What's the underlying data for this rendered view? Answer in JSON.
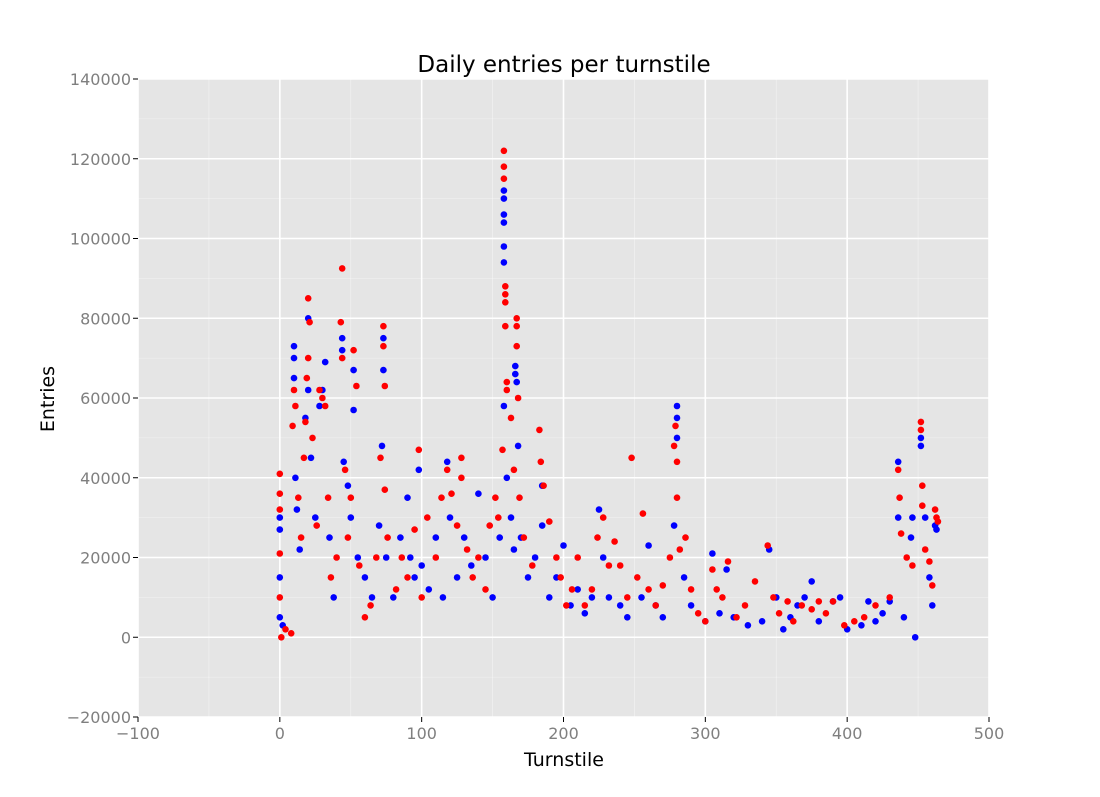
{
  "chart_data": {
    "type": "scatter",
    "title": "Daily entries per turnstile",
    "xlabel": "Turnstile",
    "ylabel": "Entries",
    "xlim": [
      -100,
      500
    ],
    "ylim": [
      -20000,
      140000
    ],
    "x_ticks": [
      -100,
      0,
      100,
      200,
      300,
      400,
      500
    ],
    "y_ticks": [
      -20000,
      0,
      20000,
      40000,
      60000,
      80000,
      100000,
      120000,
      140000
    ],
    "x_tick_labels": [
      "−100",
      "0",
      "100",
      "200",
      "300",
      "400",
      "500"
    ],
    "y_tick_labels": [
      "−20000",
      "0",
      "20000",
      "40000",
      "60000",
      "80000",
      "100000",
      "120000",
      "140000"
    ],
    "grid": true,
    "legend": "none",
    "colors": {
      "panel": "#e5e5e5",
      "grid": "#ffffff",
      "series_a": "#0000ff",
      "series_b": "#ff0000"
    },
    "series": [
      {
        "color": "#0000ff",
        "points": [
          [
            0,
            30000
          ],
          [
            0,
            27000
          ],
          [
            0,
            15000
          ],
          [
            0,
            5000
          ],
          [
            2,
            3000
          ],
          [
            10,
            73000
          ],
          [
            10,
            70000
          ],
          [
            10,
            65000
          ],
          [
            11,
            40000
          ],
          [
            12,
            32000
          ],
          [
            14,
            22000
          ],
          [
            18,
            55000
          ],
          [
            20,
            62000
          ],
          [
            20,
            80000
          ],
          [
            22,
            45000
          ],
          [
            25,
            30000
          ],
          [
            28,
            58000
          ],
          [
            30,
            62000
          ],
          [
            32,
            69000
          ],
          [
            35,
            25000
          ],
          [
            38,
            10000
          ],
          [
            44,
            75000
          ],
          [
            44,
            72000
          ],
          [
            45,
            44000
          ],
          [
            48,
            38000
          ],
          [
            50,
            30000
          ],
          [
            52,
            67000
          ],
          [
            52,
            57000
          ],
          [
            55,
            20000
          ],
          [
            60,
            15000
          ],
          [
            65,
            10000
          ],
          [
            70,
            28000
          ],
          [
            72,
            48000
          ],
          [
            73,
            75000
          ],
          [
            73,
            67000
          ],
          [
            75,
            20000
          ],
          [
            80,
            10000
          ],
          [
            85,
            25000
          ],
          [
            90,
            35000
          ],
          [
            92,
            20000
          ],
          [
            95,
            15000
          ],
          [
            98,
            42000
          ],
          [
            100,
            18000
          ],
          [
            105,
            12000
          ],
          [
            110,
            25000
          ],
          [
            115,
            10000
          ],
          [
            118,
            44000
          ],
          [
            120,
            30000
          ],
          [
            125,
            15000
          ],
          [
            130,
            25000
          ],
          [
            135,
            18000
          ],
          [
            140,
            36000
          ],
          [
            145,
            20000
          ],
          [
            150,
            10000
          ],
          [
            155,
            25000
          ],
          [
            158,
            112000
          ],
          [
            158,
            110000
          ],
          [
            158,
            106000
          ],
          [
            158,
            104000
          ],
          [
            158,
            98000
          ],
          [
            158,
            94000
          ],
          [
            158,
            58000
          ],
          [
            160,
            40000
          ],
          [
            163,
            30000
          ],
          [
            165,
            22000
          ],
          [
            166,
            68000
          ],
          [
            166,
            66000
          ],
          [
            167,
            64000
          ],
          [
            168,
            48000
          ],
          [
            170,
            25000
          ],
          [
            175,
            15000
          ],
          [
            180,
            20000
          ],
          [
            185,
            38000
          ],
          [
            185,
            28000
          ],
          [
            190,
            10000
          ],
          [
            195,
            15000
          ],
          [
            200,
            23000
          ],
          [
            205,
            8000
          ],
          [
            210,
            12000
          ],
          [
            215,
            6000
          ],
          [
            220,
            10000
          ],
          [
            225,
            32000
          ],
          [
            228,
            20000
          ],
          [
            232,
            10000
          ],
          [
            240,
            8000
          ],
          [
            245,
            5000
          ],
          [
            255,
            10000
          ],
          [
            260,
            23000
          ],
          [
            265,
            8000
          ],
          [
            270,
            5000
          ],
          [
            278,
            28000
          ],
          [
            280,
            58000
          ],
          [
            280,
            55000
          ],
          [
            280,
            50000
          ],
          [
            285,
            15000
          ],
          [
            290,
            8000
          ],
          [
            300,
            4000
          ],
          [
            305,
            21000
          ],
          [
            310,
            6000
          ],
          [
            315,
            17000
          ],
          [
            320,
            5000
          ],
          [
            330,
            3000
          ],
          [
            340,
            4000
          ],
          [
            345,
            22000
          ],
          [
            350,
            10000
          ],
          [
            355,
            2000
          ],
          [
            360,
            5000
          ],
          [
            365,
            8000
          ],
          [
            370,
            10000
          ],
          [
            375,
            14000
          ],
          [
            380,
            4000
          ],
          [
            390,
            9000
          ],
          [
            395,
            10000
          ],
          [
            400,
            2000
          ],
          [
            410,
            3000
          ],
          [
            415,
            9000
          ],
          [
            420,
            4000
          ],
          [
            425,
            6000
          ],
          [
            430,
            9000
          ],
          [
            436,
            44000
          ],
          [
            436,
            30000
          ],
          [
            440,
            5000
          ],
          [
            445,
            25000
          ],
          [
            446,
            30000
          ],
          [
            448,
            0
          ],
          [
            452,
            48000
          ],
          [
            452,
            50000
          ],
          [
            455,
            30000
          ],
          [
            458,
            15000
          ],
          [
            460,
            8000
          ],
          [
            462,
            28000
          ],
          [
            463,
            27000
          ]
        ]
      },
      {
        "color": "#ff0000",
        "points": [
          [
            0,
            41000
          ],
          [
            0,
            36000
          ],
          [
            0,
            32000
          ],
          [
            0,
            21000
          ],
          [
            0,
            10000
          ],
          [
            1,
            0
          ],
          [
            4,
            2000
          ],
          [
            8,
            1000
          ],
          [
            9,
            53000
          ],
          [
            10,
            62000
          ],
          [
            11,
            58000
          ],
          [
            13,
            35000
          ],
          [
            15,
            25000
          ],
          [
            17,
            45000
          ],
          [
            18,
            54000
          ],
          [
            19,
            65000
          ],
          [
            20,
            70000
          ],
          [
            20,
            85000
          ],
          [
            21,
            79000
          ],
          [
            23,
            50000
          ],
          [
            26,
            28000
          ],
          [
            28,
            62000
          ],
          [
            30,
            60000
          ],
          [
            32,
            58000
          ],
          [
            34,
            35000
          ],
          [
            36,
            15000
          ],
          [
            40,
            20000
          ],
          [
            43,
            79000
          ],
          [
            44,
            92500
          ],
          [
            44,
            70000
          ],
          [
            46,
            42000
          ],
          [
            48,
            25000
          ],
          [
            50,
            35000
          ],
          [
            52,
            72000
          ],
          [
            54,
            63000
          ],
          [
            56,
            18000
          ],
          [
            60,
            5000
          ],
          [
            64,
            8000
          ],
          [
            68,
            20000
          ],
          [
            71,
            45000
          ],
          [
            73,
            78000
          ],
          [
            73,
            73000
          ],
          [
            74,
            63000
          ],
          [
            74,
            37000
          ],
          [
            76,
            25000
          ],
          [
            82,
            12000
          ],
          [
            86,
            20000
          ],
          [
            90,
            15000
          ],
          [
            95,
            27000
          ],
          [
            98,
            47000
          ],
          [
            100,
            10000
          ],
          [
            104,
            30000
          ],
          [
            110,
            20000
          ],
          [
            114,
            35000
          ],
          [
            118,
            42000
          ],
          [
            121,
            36000
          ],
          [
            125,
            28000
          ],
          [
            128,
            45000
          ],
          [
            128,
            40000
          ],
          [
            132,
            22000
          ],
          [
            136,
            15000
          ],
          [
            140,
            20000
          ],
          [
            145,
            12000
          ],
          [
            148,
            28000
          ],
          [
            152,
            35000
          ],
          [
            154,
            30000
          ],
          [
            157,
            47000
          ],
          [
            158,
            122000
          ],
          [
            158,
            118000
          ],
          [
            158,
            115000
          ],
          [
            159,
            88000
          ],
          [
            159,
            86000
          ],
          [
            159,
            84000
          ],
          [
            159,
            78000
          ],
          [
            160,
            64000
          ],
          [
            160,
            62000
          ],
          [
            163,
            55000
          ],
          [
            165,
            42000
          ],
          [
            167,
            80000
          ],
          [
            167,
            78000
          ],
          [
            167,
            73000
          ],
          [
            168,
            60000
          ],
          [
            169,
            35000
          ],
          [
            172,
            25000
          ],
          [
            178,
            18000
          ],
          [
            183,
            52000
          ],
          [
            184,
            44000
          ],
          [
            186,
            38000
          ],
          [
            190,
            29000
          ],
          [
            195,
            20000
          ],
          [
            198,
            15000
          ],
          [
            202,
            8000
          ],
          [
            206,
            12000
          ],
          [
            210,
            20000
          ],
          [
            215,
            8000
          ],
          [
            220,
            12000
          ],
          [
            224,
            25000
          ],
          [
            228,
            30000
          ],
          [
            232,
            18000
          ],
          [
            236,
            24000
          ],
          [
            240,
            18000
          ],
          [
            245,
            10000
          ],
          [
            248,
            45000
          ],
          [
            252,
            15000
          ],
          [
            256,
            31000
          ],
          [
            260,
            12000
          ],
          [
            265,
            8000
          ],
          [
            270,
            13000
          ],
          [
            275,
            20000
          ],
          [
            278,
            48000
          ],
          [
            279,
            53000
          ],
          [
            280,
            44000
          ],
          [
            280,
            35000
          ],
          [
            282,
            22000
          ],
          [
            286,
            25000
          ],
          [
            290,
            12000
          ],
          [
            295,
            6000
          ],
          [
            300,
            4000
          ],
          [
            305,
            17000
          ],
          [
            308,
            12000
          ],
          [
            312,
            10000
          ],
          [
            316,
            19000
          ],
          [
            322,
            5000
          ],
          [
            328,
            8000
          ],
          [
            335,
            14000
          ],
          [
            344,
            23000
          ],
          [
            348,
            10000
          ],
          [
            352,
            6000
          ],
          [
            358,
            9000
          ],
          [
            362,
            4000
          ],
          [
            368,
            8000
          ],
          [
            375,
            7000
          ],
          [
            380,
            9000
          ],
          [
            385,
            6000
          ],
          [
            390,
            9000
          ],
          [
            398,
            3000
          ],
          [
            405,
            4000
          ],
          [
            412,
            5000
          ],
          [
            420,
            8000
          ],
          [
            430,
            10000
          ],
          [
            436,
            42000
          ],
          [
            437,
            35000
          ],
          [
            438,
            26000
          ],
          [
            442,
            20000
          ],
          [
            446,
            18000
          ],
          [
            452,
            54000
          ],
          [
            452,
            52000
          ],
          [
            453,
            38000
          ],
          [
            453,
            33000
          ],
          [
            455,
            22000
          ],
          [
            458,
            19000
          ],
          [
            460,
            13000
          ],
          [
            462,
            32000
          ],
          [
            463,
            30000
          ],
          [
            464,
            29000
          ]
        ]
      }
    ]
  }
}
